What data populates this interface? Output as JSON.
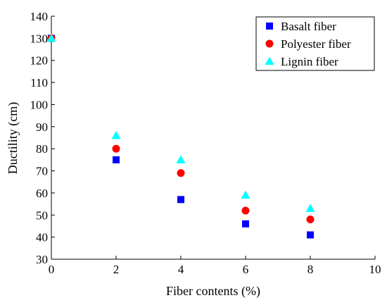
{
  "chart_data": {
    "type": "scatter",
    "xlabel": "Fiber contents (%)",
    "ylabel": "Ductility (cm)",
    "xlim": [
      0,
      10
    ],
    "ylim": [
      30,
      140
    ],
    "xticks": [
      0,
      2,
      4,
      6,
      8,
      10
    ],
    "yticks": [
      30,
      40,
      50,
      60,
      70,
      80,
      90,
      100,
      110,
      120,
      130,
      140
    ],
    "grid": false,
    "legend_position": "top-right",
    "series": [
      {
        "name": "Basalt fiber",
        "marker": "square",
        "color": "#0000ff",
        "x": [
          0,
          2,
          4,
          6,
          8
        ],
        "y": [
          130,
          75,
          57,
          46,
          41
        ]
      },
      {
        "name": "Polyester fiber",
        "marker": "circle",
        "color": "#ff0000",
        "x": [
          0,
          2,
          4,
          6,
          8
        ],
        "y": [
          130,
          80,
          69,
          52,
          48
        ]
      },
      {
        "name": "Lignin fiber",
        "marker": "triangle",
        "color": "#00ffff",
        "x": [
          0,
          2,
          4,
          6,
          8
        ],
        "y": [
          130,
          86,
          75,
          59,
          53
        ]
      }
    ]
  }
}
